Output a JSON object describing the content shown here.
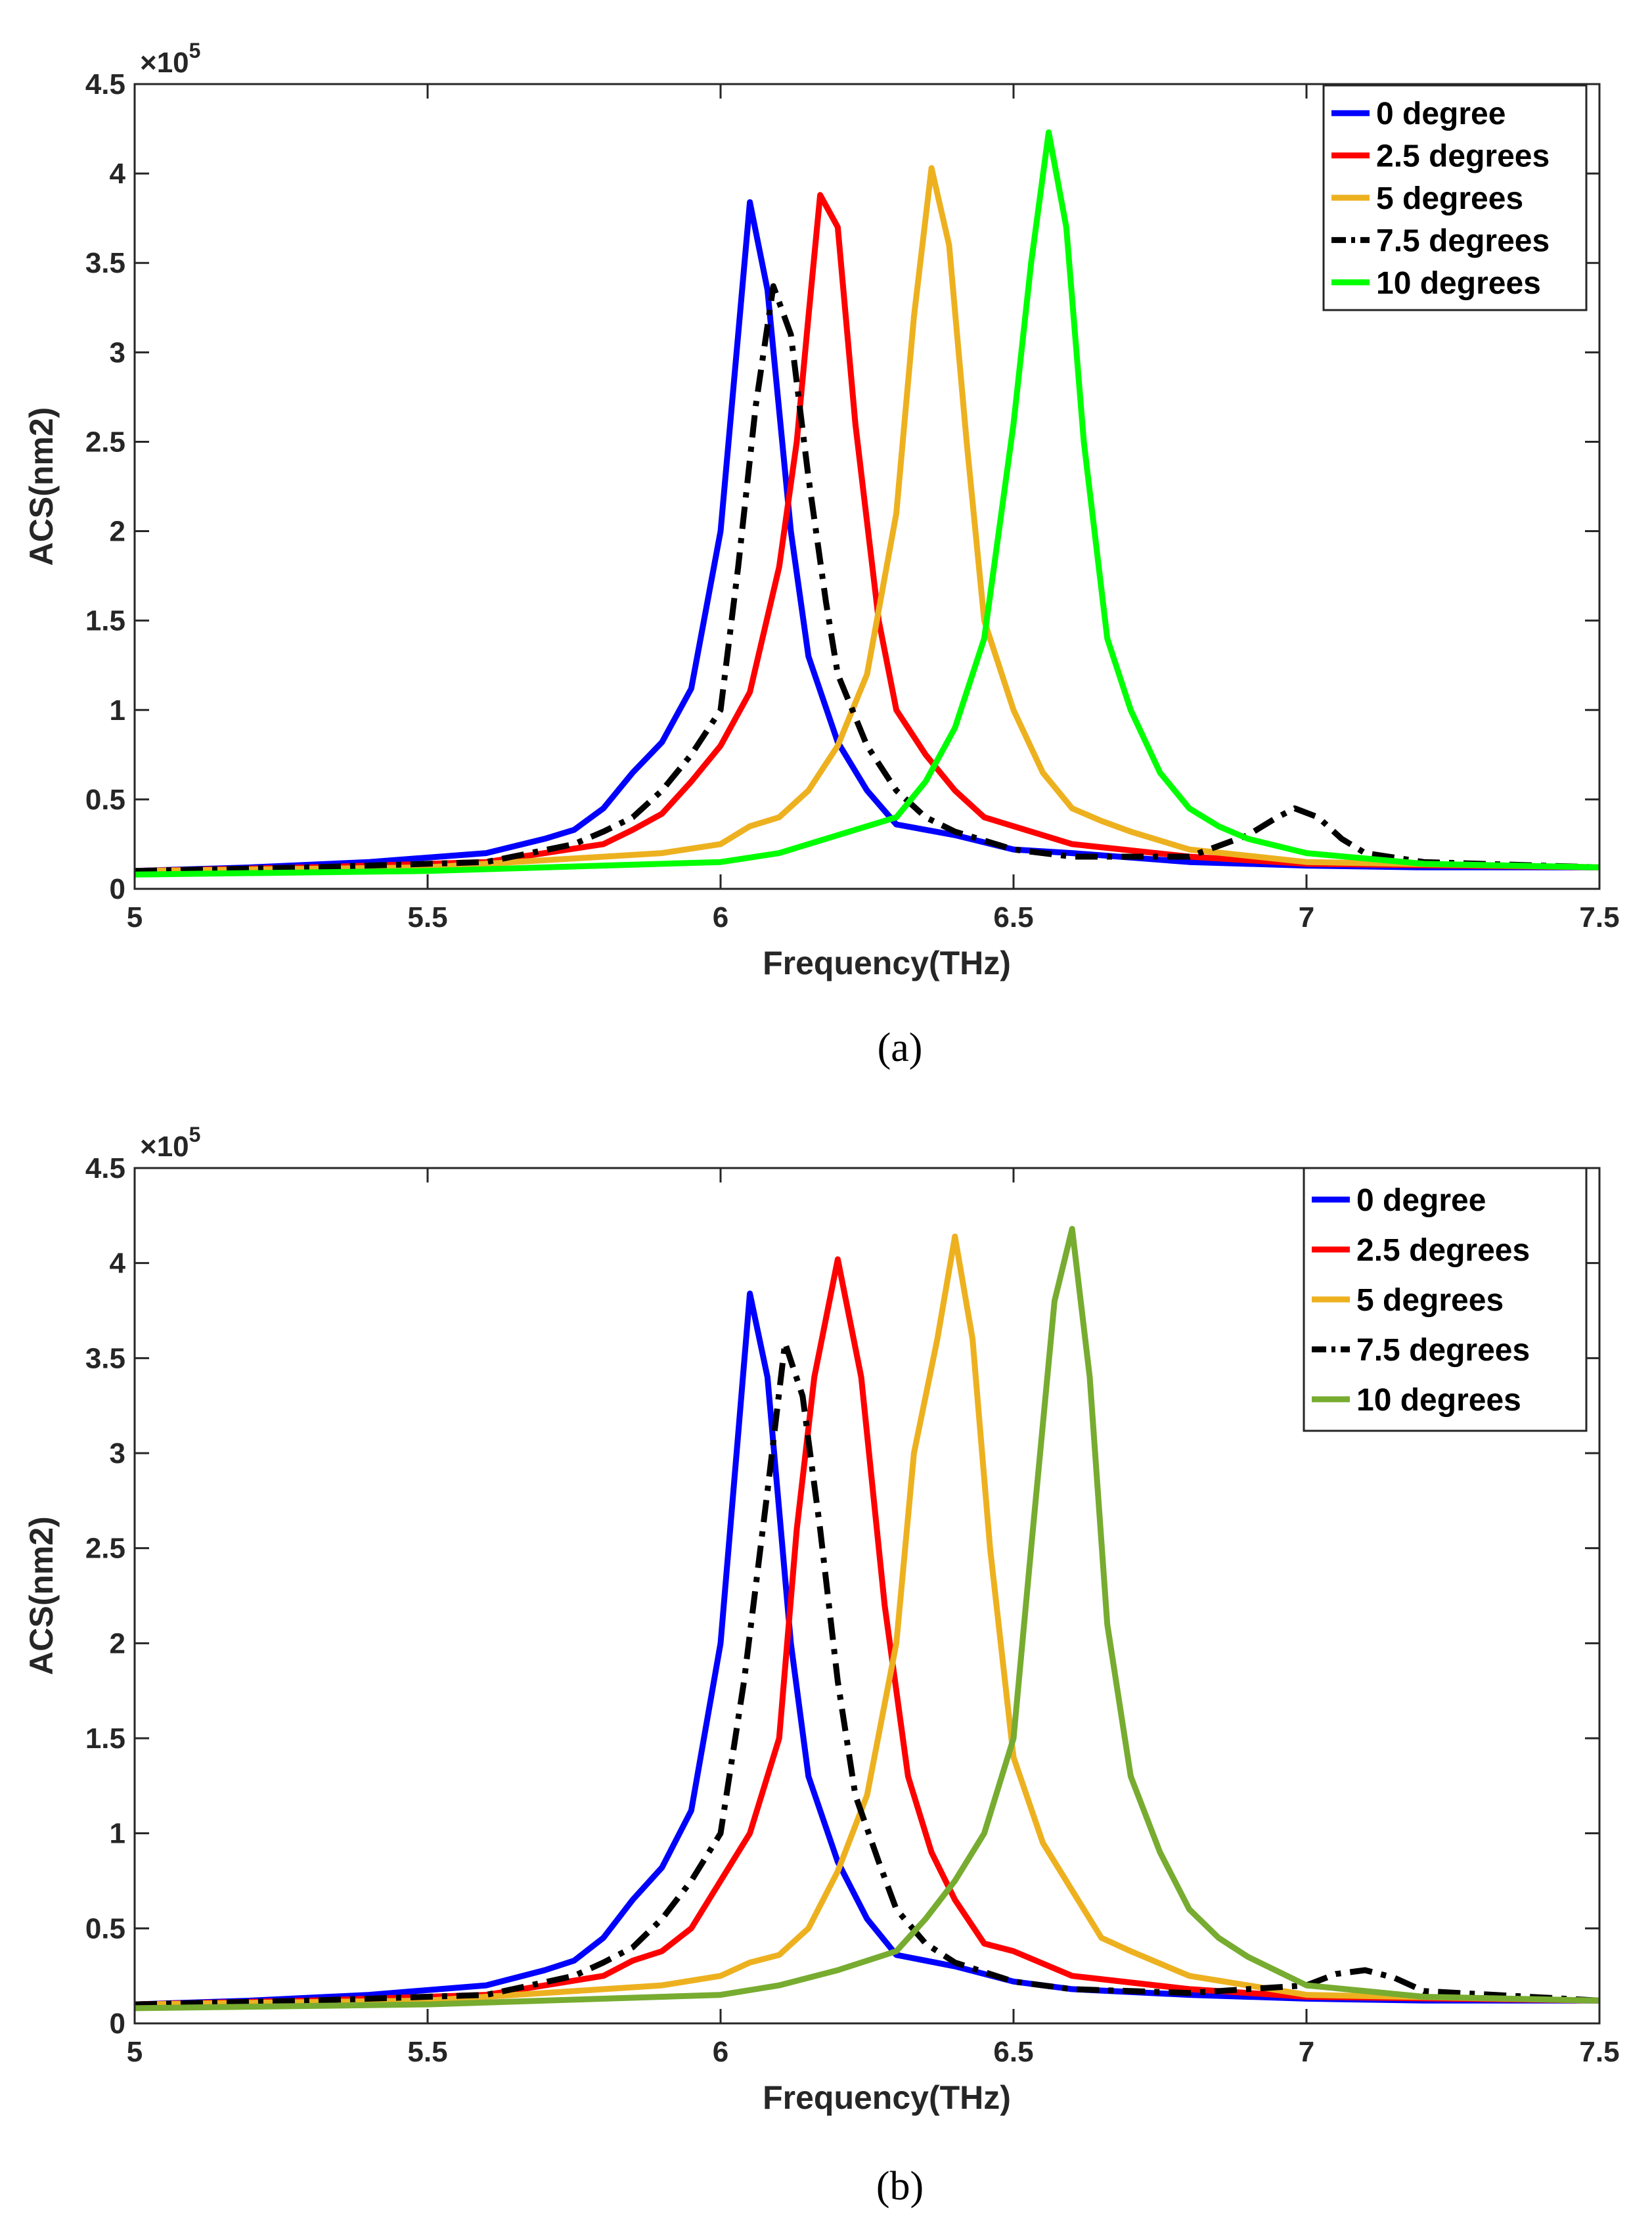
{
  "chart_data": [
    {
      "panel": "a",
      "caption": "(a)",
      "type": "line",
      "xlabel": "Frequency(THz)",
      "ylabel": "ACS(nm2)",
      "xlim": [
        5,
        7.5
      ],
      "ylim": [
        0,
        4.5
      ],
      "y_multiplier": {
        "base": "×10",
        "exponent": "5"
      },
      "xticks": [
        "5",
        "5.5",
        "6",
        "6.5",
        "7",
        "7.5"
      ],
      "yticks": [
        "0",
        "0.5",
        "1",
        "1.5",
        "2",
        "2.5",
        "3",
        "3.5",
        "4",
        "4.5"
      ],
      "legend_position": "top-right",
      "series": [
        {
          "name": "0 degree",
          "color": "#0000ff",
          "dash": "solid",
          "x": [
            5.0,
            5.2,
            5.4,
            5.6,
            5.7,
            5.75,
            5.8,
            5.85,
            5.9,
            5.95,
            6.0,
            6.03,
            6.05,
            6.08,
            6.12,
            6.15,
            6.2,
            6.25,
            6.3,
            6.4,
            6.5,
            6.6,
            6.8,
            7.0,
            7.2,
            7.5
          ],
          "y": [
            0.1,
            0.12,
            0.15,
            0.2,
            0.28,
            0.33,
            0.45,
            0.65,
            0.82,
            1.12,
            2.0,
            3.1,
            3.84,
            3.35,
            2.0,
            1.3,
            0.82,
            0.55,
            0.36,
            0.3,
            0.22,
            0.2,
            0.15,
            0.13,
            0.12,
            0.12
          ]
        },
        {
          "name": "2.5 degrees",
          "color": "#ff0000",
          "dash": "solid",
          "x": [
            5.0,
            5.3,
            5.6,
            5.8,
            5.85,
            5.9,
            5.95,
            6.0,
            6.05,
            6.1,
            6.13,
            6.15,
            6.17,
            6.2,
            6.23,
            6.27,
            6.3,
            6.35,
            6.4,
            6.45,
            6.5,
            6.6,
            6.8,
            7.0,
            7.5
          ],
          "y": [
            0.1,
            0.12,
            0.15,
            0.25,
            0.33,
            0.42,
            0.6,
            0.8,
            1.1,
            1.8,
            2.5,
            3.2,
            3.88,
            3.7,
            2.6,
            1.5,
            1.0,
            0.75,
            0.55,
            0.4,
            0.35,
            0.25,
            0.18,
            0.14,
            0.12
          ]
        },
        {
          "name": "5 degrees",
          "color": "#edb120",
          "dash": "solid",
          "x": [
            5.0,
            5.5,
            5.9,
            6.0,
            6.05,
            6.1,
            6.15,
            6.2,
            6.25,
            6.3,
            6.33,
            6.36,
            6.39,
            6.42,
            6.45,
            6.5,
            6.55,
            6.6,
            6.65,
            6.7,
            6.8,
            7.0,
            7.5
          ],
          "y": [
            0.1,
            0.12,
            0.2,
            0.25,
            0.35,
            0.4,
            0.55,
            0.8,
            1.2,
            2.1,
            3.2,
            4.03,
            3.6,
            2.5,
            1.5,
            1.0,
            0.65,
            0.45,
            0.38,
            0.32,
            0.22,
            0.15,
            0.12
          ]
        },
        {
          "name": "7.5 degrees",
          "color": "#000000",
          "dash": "dashdot",
          "x": [
            5.0,
            5.3,
            5.6,
            5.75,
            5.8,
            5.85,
            5.9,
            5.95,
            6.0,
            6.03,
            6.06,
            6.09,
            6.12,
            6.15,
            6.18,
            6.2,
            6.25,
            6.3,
            6.35,
            6.4,
            6.5,
            6.6,
            6.8,
            6.9,
            6.95,
            6.98,
            7.02,
            7.06,
            7.1,
            7.2,
            7.5
          ],
          "y": [
            0.1,
            0.12,
            0.15,
            0.25,
            0.32,
            0.4,
            0.55,
            0.75,
            1.0,
            1.8,
            2.7,
            3.37,
            3.1,
            2.3,
            1.6,
            1.2,
            0.8,
            0.55,
            0.4,
            0.32,
            0.22,
            0.18,
            0.18,
            0.3,
            0.4,
            0.45,
            0.4,
            0.28,
            0.2,
            0.15,
            0.12
          ]
        },
        {
          "name": "10 degrees",
          "color": "#00ff00",
          "dash": "solid",
          "x": [
            5.0,
            5.5,
            6.0,
            6.1,
            6.2,
            6.3,
            6.35,
            6.4,
            6.45,
            6.5,
            6.53,
            6.56,
            6.59,
            6.62,
            6.66,
            6.7,
            6.75,
            6.8,
            6.85,
            6.9,
            7.0,
            7.2,
            7.5
          ],
          "y": [
            0.08,
            0.1,
            0.15,
            0.2,
            0.3,
            0.4,
            0.6,
            0.9,
            1.4,
            2.6,
            3.5,
            4.23,
            3.7,
            2.5,
            1.4,
            1.0,
            0.65,
            0.45,
            0.35,
            0.28,
            0.2,
            0.14,
            0.12
          ]
        }
      ]
    },
    {
      "panel": "b",
      "caption": "(b)",
      "type": "line",
      "xlabel": "Frequency(THz)",
      "ylabel": "ACS(nm2)",
      "xlim": [
        5,
        7.5
      ],
      "ylim": [
        0,
        4.5
      ],
      "y_multiplier": {
        "base": "×10",
        "exponent": "5"
      },
      "xticks": [
        "5",
        "5.5",
        "6",
        "6.5",
        "7",
        "7.5"
      ],
      "yticks": [
        "0",
        "0.5",
        "1",
        "1.5",
        "2",
        "2.5",
        "3",
        "3.5",
        "4",
        "4.5"
      ],
      "legend_position": "top-right",
      "series": [
        {
          "name": "0 degree",
          "color": "#0000ff",
          "dash": "solid",
          "x": [
            5.0,
            5.2,
            5.4,
            5.6,
            5.7,
            5.75,
            5.8,
            5.85,
            5.9,
            5.95,
            6.0,
            6.03,
            6.05,
            6.08,
            6.12,
            6.15,
            6.2,
            6.25,
            6.3,
            6.4,
            6.5,
            6.6,
            6.8,
            7.0,
            7.2,
            7.5
          ],
          "y": [
            0.1,
            0.12,
            0.15,
            0.2,
            0.28,
            0.33,
            0.45,
            0.65,
            0.82,
            1.12,
            2.0,
            3.1,
            3.84,
            3.4,
            2.0,
            1.3,
            0.85,
            0.55,
            0.36,
            0.3,
            0.22,
            0.18,
            0.15,
            0.13,
            0.12,
            0.12
          ]
        },
        {
          "name": "2.5 degrees",
          "color": "#ff0000",
          "dash": "solid",
          "x": [
            5.0,
            5.3,
            5.6,
            5.8,
            5.85,
            5.9,
            5.95,
            6.0,
            6.05,
            6.1,
            6.13,
            6.16,
            6.2,
            6.24,
            6.28,
            6.32,
            6.36,
            6.4,
            6.45,
            6.5,
            6.6,
            6.8,
            7.0,
            7.5
          ],
          "y": [
            0.1,
            0.12,
            0.15,
            0.25,
            0.33,
            0.38,
            0.5,
            0.75,
            1.0,
            1.5,
            2.6,
            3.4,
            4.02,
            3.4,
            2.2,
            1.3,
            0.9,
            0.65,
            0.42,
            0.38,
            0.25,
            0.18,
            0.14,
            0.12
          ]
        },
        {
          "name": "5 degrees",
          "color": "#edb120",
          "dash": "solid",
          "x": [
            5.0,
            5.5,
            5.9,
            6.0,
            6.05,
            6.1,
            6.15,
            6.2,
            6.25,
            6.3,
            6.33,
            6.37,
            6.4,
            6.43,
            6.46,
            6.5,
            6.55,
            6.6,
            6.65,
            6.7,
            6.8,
            7.0,
            7.5
          ],
          "y": [
            0.1,
            0.12,
            0.2,
            0.25,
            0.32,
            0.36,
            0.5,
            0.8,
            1.2,
            2.0,
            3.0,
            3.6,
            4.14,
            3.6,
            2.5,
            1.4,
            0.95,
            0.7,
            0.45,
            0.38,
            0.25,
            0.15,
            0.12
          ]
        },
        {
          "name": "7.5 degrees",
          "color": "#000000",
          "dash": "dashdot",
          "x": [
            5.0,
            5.3,
            5.6,
            5.75,
            5.8,
            5.85,
            5.9,
            5.95,
            6.0,
            6.04,
            6.08,
            6.11,
            6.14,
            6.17,
            6.2,
            6.23,
            6.27,
            6.3,
            6.35,
            6.4,
            6.5,
            6.6,
            6.8,
            7.0,
            7.05,
            7.1,
            7.15,
            7.2,
            7.5
          ],
          "y": [
            0.1,
            0.12,
            0.15,
            0.25,
            0.32,
            0.4,
            0.55,
            0.75,
            1.0,
            1.8,
            2.8,
            3.58,
            3.3,
            2.6,
            1.8,
            1.2,
            0.85,
            0.6,
            0.42,
            0.32,
            0.22,
            0.18,
            0.16,
            0.2,
            0.26,
            0.28,
            0.24,
            0.17,
            0.12
          ]
        },
        {
          "name": "10 degrees",
          "color": "#77ac30",
          "dash": "solid",
          "x": [
            5.0,
            5.5,
            6.0,
            6.1,
            6.2,
            6.3,
            6.35,
            6.4,
            6.45,
            6.5,
            6.53,
            6.57,
            6.6,
            6.63,
            6.66,
            6.7,
            6.75,
            6.8,
            6.85,
            6.9,
            7.0,
            7.2,
            7.5
          ],
          "y": [
            0.08,
            0.1,
            0.15,
            0.2,
            0.28,
            0.38,
            0.55,
            0.75,
            1.0,
            1.5,
            2.5,
            3.8,
            4.18,
            3.4,
            2.1,
            1.3,
            0.9,
            0.6,
            0.45,
            0.35,
            0.2,
            0.14,
            0.12
          ]
        }
      ]
    }
  ]
}
